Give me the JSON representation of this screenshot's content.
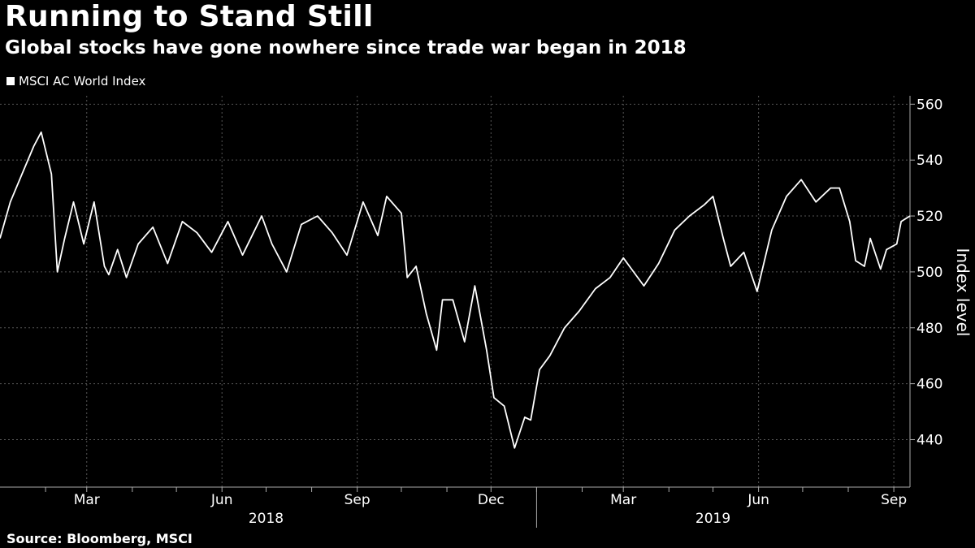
{
  "header": {
    "title": "Running to Stand Still",
    "subtitle": "Global stocks have gone nowhere since trade war began in 2018"
  },
  "footer": {
    "source": "Source: Bloomberg, MSCI"
  },
  "colors": {
    "background": "#000000",
    "line": "#ffffff",
    "grid": "#555555"
  },
  "chart_data": {
    "type": "line",
    "title": "Running to Stand Still",
    "subtitle": "Global stocks have gone nowhere since trade war began in 2018",
    "ylabel": "Index level",
    "ylim": [
      423,
      563
    ],
    "yticks": [
      440,
      460,
      480,
      500,
      520,
      540,
      560
    ],
    "xlim": [
      "2018-01-01",
      "2019-09-12"
    ],
    "x_month_ticks": [
      "2018-02-01",
      "2018-03-01",
      "2018-04-01",
      "2018-05-01",
      "2018-06-01",
      "2018-07-01",
      "2018-08-01",
      "2018-09-01",
      "2018-10-01",
      "2018-11-01",
      "2018-12-01",
      "2019-01-01",
      "2019-02-01",
      "2019-03-01",
      "2019-04-01",
      "2019-05-01",
      "2019-06-01",
      "2019-07-01",
      "2019-08-01",
      "2019-09-01"
    ],
    "x_labels": [
      {
        "date": "2018-03-01",
        "text": "Mar"
      },
      {
        "date": "2018-06-01",
        "text": "Jun"
      },
      {
        "date": "2018-09-01",
        "text": "Sep"
      },
      {
        "date": "2018-12-01",
        "text": "Dec"
      },
      {
        "date": "2019-03-01",
        "text": "Mar"
      },
      {
        "date": "2019-06-01",
        "text": "Jun"
      },
      {
        "date": "2019-09-01",
        "text": "Sep"
      }
    ],
    "year_labels": [
      {
        "date": "2018-07-01",
        "text": "2018"
      },
      {
        "date": "2019-05-01",
        "text": "2019"
      }
    ],
    "year_divider": "2019-01-01",
    "grid": true,
    "legend_position": "top-left",
    "series": [
      {
        "name": "MSCI AC World Index",
        "color": "#ffffff",
        "x": [
          "2018-01-01",
          "2018-01-08",
          "2018-01-16",
          "2018-01-24",
          "2018-01-29",
          "2018-02-05",
          "2018-02-09",
          "2018-02-14",
          "2018-02-20",
          "2018-02-27",
          "2018-03-06",
          "2018-03-13",
          "2018-03-16",
          "2018-03-22",
          "2018-03-28",
          "2018-04-05",
          "2018-04-15",
          "2018-04-25",
          "2018-05-05",
          "2018-05-15",
          "2018-05-25",
          "2018-06-05",
          "2018-06-15",
          "2018-06-28",
          "2018-07-05",
          "2018-07-15",
          "2018-07-25",
          "2018-08-05",
          "2018-08-15",
          "2018-08-25",
          "2018-09-05",
          "2018-09-15",
          "2018-09-21",
          "2018-10-01",
          "2018-10-05",
          "2018-10-11",
          "2018-10-18",
          "2018-10-25",
          "2018-10-29",
          "2018-11-05",
          "2018-11-13",
          "2018-11-20",
          "2018-11-28",
          "2018-12-03",
          "2018-12-10",
          "2018-12-17",
          "2018-12-24",
          "2018-12-28",
          "2019-01-03",
          "2019-01-10",
          "2019-01-20",
          "2019-01-30",
          "2019-02-10",
          "2019-02-20",
          "2019-03-01",
          "2019-03-08",
          "2019-03-15",
          "2019-03-25",
          "2019-04-05",
          "2019-04-15",
          "2019-04-25",
          "2019-05-01",
          "2019-05-08",
          "2019-05-13",
          "2019-05-22",
          "2019-05-31",
          "2019-06-10",
          "2019-06-20",
          "2019-06-30",
          "2019-07-10",
          "2019-07-20",
          "2019-07-26",
          "2019-08-02",
          "2019-08-06",
          "2019-08-12",
          "2019-08-16",
          "2019-08-23",
          "2019-08-27",
          "2019-09-03",
          "2019-09-06",
          "2019-09-12"
        ],
        "values": [
          512,
          525,
          535,
          545,
          550,
          535,
          500,
          512,
          525,
          510,
          525,
          502,
          499,
          508,
          498,
          510,
          516,
          503,
          518,
          514,
          507,
          518,
          506,
          520,
          510,
          500,
          517,
          520,
          514,
          506,
          525,
          513,
          527,
          521,
          498,
          502,
          485,
          472,
          490,
          490,
          475,
          495,
          472,
          455,
          452,
          437,
          448,
          447,
          465,
          470,
          480,
          486,
          494,
          498,
          505,
          500,
          495,
          503,
          515,
          520,
          524,
          527,
          512,
          502,
          507,
          493,
          515,
          527,
          533,
          525,
          530,
          530,
          518,
          504,
          502,
          512,
          501,
          508,
          510,
          518,
          520
        ]
      }
    ]
  }
}
